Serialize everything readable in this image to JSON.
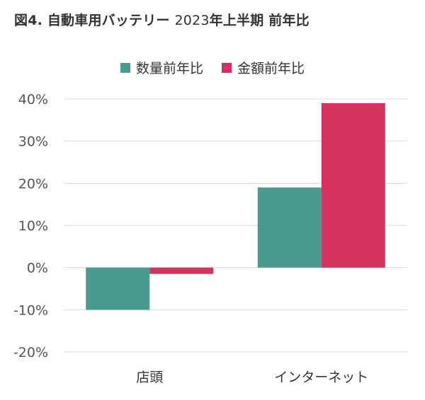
{
  "title": {
    "prefix": "図4. 自動車用バッテリー ",
    "year": "2023",
    "suffix": "年上半期 前年比"
  },
  "colors": {
    "quantity": "#4a9a90",
    "amount": "#d5325e"
  },
  "chart_data": {
    "type": "bar",
    "categories": [
      "店頭",
      "インターネット"
    ],
    "series": [
      {
        "name": "数量前年比",
        "values": [
          -10,
          19
        ]
      },
      {
        "name": "金額前年比",
        "values": [
          -1.5,
          39
        ]
      }
    ],
    "ylim": [
      -20,
      40
    ],
    "yticks": [
      40,
      30,
      20,
      10,
      0,
      -10,
      -20
    ],
    "ytick_labels": [
      "40%",
      "30%",
      "20%",
      "10%",
      "0%",
      "-10%",
      "-20%"
    ],
    "grid": true,
    "legend": "top-center"
  }
}
